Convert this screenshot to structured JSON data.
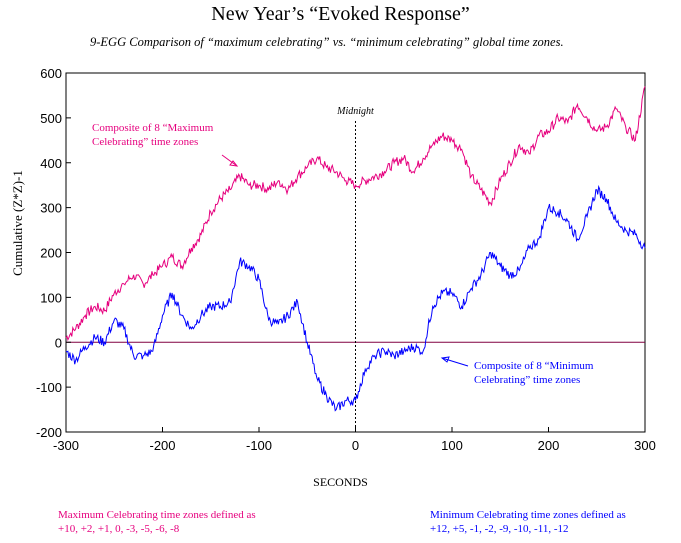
{
  "chart_data": {
    "type": "line",
    "title": "New Year’s “Evoked Response”",
    "subtitle": "9-EGG Comparison of “maximum celebrating” vs. “minimum celebrating” global time zones.",
    "xlabel": "SECONDS",
    "ylabel": "Cumulative (Z*Z)-1",
    "xlim": [
      -300,
      300
    ],
    "ylim": [
      -200,
      600
    ],
    "xticks": [
      -300,
      -200,
      -100,
      0,
      100,
      200,
      300
    ],
    "yticks": [
      -200,
      -100,
      0,
      100,
      200,
      300,
      400,
      500,
      600
    ],
    "midnight_label": "Midnight",
    "x": [
      -300,
      -290,
      -280,
      -270,
      -260,
      -250,
      -240,
      -230,
      -220,
      -210,
      -200,
      -190,
      -180,
      -170,
      -160,
      -150,
      -140,
      -130,
      -120,
      -110,
      -100,
      -90,
      -80,
      -70,
      -60,
      -50,
      -40,
      -30,
      -20,
      -10,
      0,
      10,
      20,
      30,
      40,
      50,
      60,
      70,
      80,
      90,
      100,
      110,
      120,
      130,
      140,
      150,
      160,
      170,
      180,
      190,
      200,
      210,
      220,
      230,
      240,
      250,
      260,
      270,
      280,
      290,
      300
    ],
    "series": [
      {
        "name": "Composite of 8 “Maximum Celebrating” time zones",
        "color": "#e6007e",
        "values": [
          10,
          30,
          60,
          80,
          70,
          110,
          130,
          150,
          130,
          150,
          170,
          190,
          170,
          210,
          240,
          290,
          320,
          340,
          370,
          350,
          350,
          340,
          360,
          340,
          370,
          390,
          410,
          390,
          380,
          360,
          350,
          360,
          370,
          380,
          400,
          410,
          380,
          410,
          440,
          460,
          450,
          430,
          370,
          340,
          310,
          360,
          400,
          440,
          420,
          460,
          470,
          500,
          490,
          530,
          500,
          470,
          480,
          520,
          480,
          450,
          570
        ]
      },
      {
        "name": "Composite of 8 “Minimum Celebrating” time zones",
        "color": "#0000ff",
        "values": [
          -20,
          -40,
          -10,
          10,
          0,
          50,
          30,
          -30,
          -30,
          -20,
          60,
          110,
          60,
          30,
          60,
          80,
          80,
          90,
          180,
          170,
          140,
          50,
          40,
          60,
          90,
          0,
          -80,
          -120,
          -150,
          -130,
          -130,
          -60,
          -30,
          -20,
          -30,
          -20,
          -10,
          -20,
          80,
          110,
          110,
          80,
          120,
          150,
          200,
          170,
          150,
          160,
          210,
          230,
          300,
          290,
          270,
          230,
          280,
          340,
          320,
          270,
          250,
          240,
          210
        ]
      }
    ],
    "annotations": [
      {
        "text_lines": [
          "Composite of 8 “Maximum",
          "Celebrating” time zones"
        ],
        "color": "#e6007e"
      },
      {
        "text_lines": [
          "Composite of 8 “Minimum",
          "Celebrating” time zones"
        ],
        "color": "#0000ff"
      }
    ]
  },
  "notes": {
    "max_line1": "Maximum Celebrating time zones defined as",
    "max_line2": "+10, +2, +1, 0, -3, -5, -6, -8",
    "min_line1": "Minimum Celebrating time zones defined as",
    "min_line2": "+12, +5, -1, -2, -9, -10, -11, -12"
  }
}
